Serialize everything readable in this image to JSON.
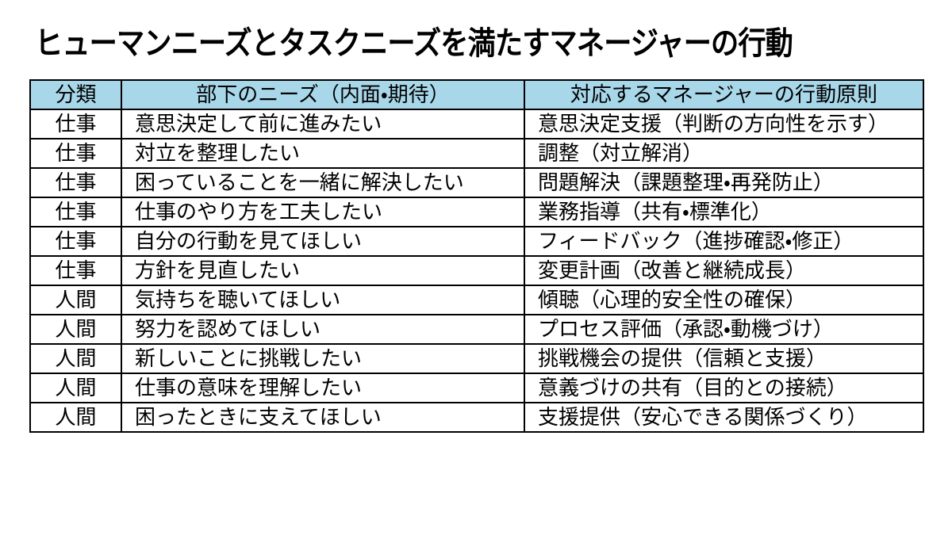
{
  "page": {
    "title": "ヒューマンニーズとタスクニーズを満たすマネージャーの行動"
  },
  "colors": {
    "header_bg": "#a8d7ea",
    "border": "#000000",
    "row_bg": "#ffffff",
    "text": "#000000"
  },
  "table": {
    "headers": [
      "分類",
      "部下のニーズ（内面・期待）",
      "対応するマネージャーの行動原則"
    ],
    "rows": [
      {
        "category": "仕事",
        "need": "意思決定して前に進みたい",
        "action": "意思決定支援（判断の方向性を示す）"
      },
      {
        "category": "仕事",
        "need": "対立を整理したい",
        "action": "調整（対立解消）"
      },
      {
        "category": "仕事",
        "need": "困っていることを一緒に解決したい",
        "action": "問題解決（課題整理・再発防止）"
      },
      {
        "category": "仕事",
        "need": "仕事のやり方を工夫したい",
        "action": "業務指導（共有・標準化）"
      },
      {
        "category": "仕事",
        "need": "自分の行動を見てほしい",
        "action": "フィードバック（進捗確認・修正）"
      },
      {
        "category": "仕事",
        "need": "方針を見直したい",
        "action": "変更計画（改善と継続成長）"
      },
      {
        "category": "人間",
        "need": "気持ちを聴いてほしい",
        "action": "傾聴（心理的安全性の確保）"
      },
      {
        "category": "人間",
        "need": "努力を認めてほしい",
        "action": "プロセス評価（承認・動機づけ）"
      },
      {
        "category": "人間",
        "need": "新しいことに挑戦したい",
        "action": "挑戦機会の提供（信頼と支援）"
      },
      {
        "category": "人間",
        "need": "仕事の意味を理解したい",
        "action": "意義づけの共有（目的との接続）"
      },
      {
        "category": "人間",
        "need": "困ったときに支えてほしい",
        "action": "支援提供（安心できる関係づくり）"
      }
    ]
  }
}
